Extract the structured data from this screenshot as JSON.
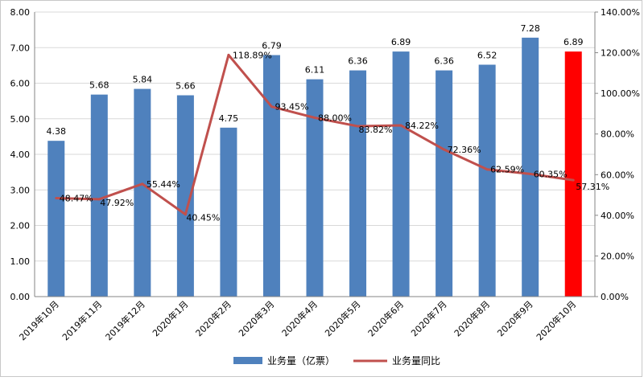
{
  "chart_data": {
    "type": "bar",
    "categories": [
      "2019年10月",
      "2019年11月",
      "2019年12月",
      "2020年1月",
      "2020年2月",
      "2020年3月",
      "2020年4月",
      "2020年5月",
      "2020年6月",
      "2020年7月",
      "2020年8月",
      "2020年9月",
      "2020年10月"
    ],
    "series": [
      {
        "name": "业务量（亿票）",
        "type": "bar",
        "axis": "left",
        "values": [
          4.38,
          5.68,
          5.84,
          5.66,
          4.75,
          6.79,
          6.11,
          6.36,
          6.89,
          6.36,
          6.52,
          7.28,
          6.89
        ],
        "labels": [
          "4.38",
          "5.68",
          "5.84",
          "5.66",
          "4.75",
          "6.79",
          "6.11",
          "6.36",
          "6.89",
          "6.36",
          "6.52",
          "7.28",
          "6.89"
        ],
        "color": "#4f81bd",
        "highlight_color": "#ff0000",
        "highlight_index": 12
      },
      {
        "name": "业务量同比",
        "type": "line",
        "axis": "right",
        "values": [
          48.47,
          47.92,
          55.44,
          40.45,
          118.89,
          93.45,
          88.0,
          83.82,
          84.22,
          72.36,
          62.59,
          60.35,
          57.31
        ],
        "labels": [
          "48.47%",
          "47.92%",
          "55.44%",
          "40.45%",
          "118.89%",
          "93.45%",
          "88.00%",
          "83.82%",
          "84.22%",
          "72.36%",
          "62.59%",
          "60.35%",
          "57.31%"
        ],
        "color": "#c0504d"
      }
    ],
    "y_left": {
      "ylim": [
        0,
        8
      ],
      "ticks": [
        "0.00",
        "1.00",
        "2.00",
        "3.00",
        "4.00",
        "5.00",
        "6.00",
        "7.00",
        "8.00"
      ]
    },
    "y_right": {
      "ylim": [
        0,
        140
      ],
      "ticks": [
        "0.00%",
        "20.00%",
        "40.00%",
        "60.00%",
        "80.00%",
        "100.00%",
        "120.00%",
        "140.00%"
      ]
    },
    "grid": true,
    "legend_position": "bottom"
  }
}
